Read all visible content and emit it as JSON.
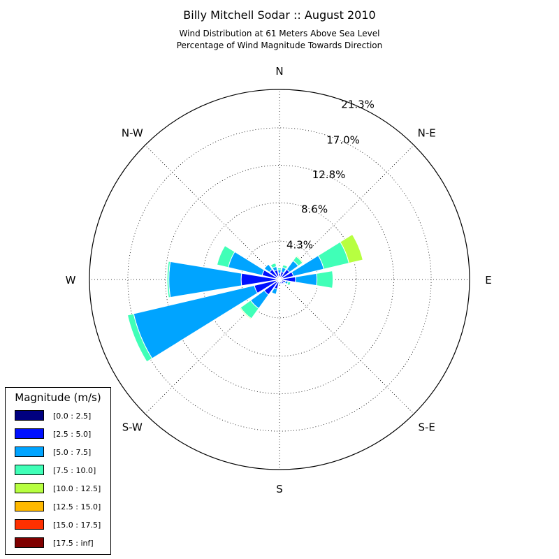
{
  "title": "Billy Mitchell Sodar :: August 2010",
  "subtitle_line1": "Wind Distribution at 61 Meters Above Sea Level",
  "subtitle_line2": "Percentage of Wind Magnitude Towards Direction",
  "legend": {
    "title": "Magnitude (m/s)",
    "items": [
      {
        "label": "[0.0 : 2.5]",
        "color": "#00007f"
      },
      {
        "label": "[2.5 : 5.0]",
        "color": "#0010ff"
      },
      {
        "label": "[5.0 : 7.5]",
        "color": "#00a4ff"
      },
      {
        "label": "[7.5 : 10.0]",
        "color": "#40ffb7"
      },
      {
        "label": "[10.0 : 12.5]",
        "color": "#b7ff40"
      },
      {
        "label": "[12.5 : 15.0]",
        "color": "#ffb900"
      },
      {
        "label": "[15.0 : 17.5]",
        "color": "#ff3000"
      },
      {
        "label": "[17.5 : inf]",
        "color": "#7f0000"
      }
    ]
  },
  "chart_data": {
    "type": "polar-stacked-bar",
    "direction_labels": [
      "N",
      "N-E",
      "E",
      "S-E",
      "S",
      "S-W",
      "W",
      "N-W"
    ],
    "radial_ticks": [
      "4.3%",
      "8.6%",
      "12.8%",
      "17.0%",
      "21.3%"
    ],
    "radial_tick_values": [
      4.3,
      8.6,
      12.8,
      17.0,
      21.3
    ],
    "rmax": 21.3,
    "grid": true,
    "legend_position": "bottom-left",
    "bins": [
      "[0.0 : 2.5]",
      "[2.5 : 5.0]",
      "[5.0 : 7.5]",
      "[7.5 : 10.0]",
      "[10.0 : 12.5]",
      "[12.5 : 15.0]",
      "[15.0 : 17.5]",
      "[17.5 : inf]"
    ],
    "directions_deg": [
      0,
      22.5,
      45,
      67.5,
      90,
      112.5,
      135,
      157.5,
      180,
      202.5,
      225,
      247.5,
      270,
      292.5,
      315,
      337.5
    ],
    "values": [
      [
        0.3,
        0.4,
        0.4,
        0.2,
        0,
        0,
        0,
        0
      ],
      [
        0.3,
        0.6,
        0.5,
        0.3,
        0,
        0,
        0,
        0
      ],
      [
        0.4,
        1.0,
        1.2,
        0.6,
        0.1,
        0,
        0,
        0
      ],
      [
        0.4,
        1.2,
        3.5,
        2.9,
        1.6,
        0,
        0,
        0
      ],
      [
        0.4,
        1.4,
        2.4,
        1.8,
        0,
        0,
        0,
        0
      ],
      [
        0.3,
        0.4,
        0.3,
        0.3,
        0,
        0,
        0,
        0
      ],
      [
        0.3,
        0.3,
        0.1,
        0,
        0,
        0,
        0,
        0
      ],
      [
        0.3,
        0.2,
        0,
        0,
        0,
        0,
        0,
        0
      ],
      [
        0.2,
        0.2,
        0.2,
        0,
        0,
        0,
        0,
        0
      ],
      [
        0.3,
        0.8,
        0.6,
        0,
        0,
        0,
        0,
        0
      ],
      [
        0.4,
        1.7,
        1.9,
        1.4,
        0.1,
        0,
        0,
        0
      ],
      [
        0.4,
        2.5,
        13.9,
        0.7,
        0,
        0,
        0,
        0
      ],
      [
        0.4,
        3.9,
        8.1,
        0.2,
        0,
        0,
        0,
        0
      ],
      [
        0.4,
        1.6,
        3.9,
        1.3,
        0,
        0,
        0,
        0
      ],
      [
        0.4,
        1.0,
        0.7,
        0,
        0,
        0,
        0,
        0
      ],
      [
        0.4,
        0.7,
        0.4,
        0.4,
        0,
        0,
        0,
        0
      ]
    ]
  }
}
